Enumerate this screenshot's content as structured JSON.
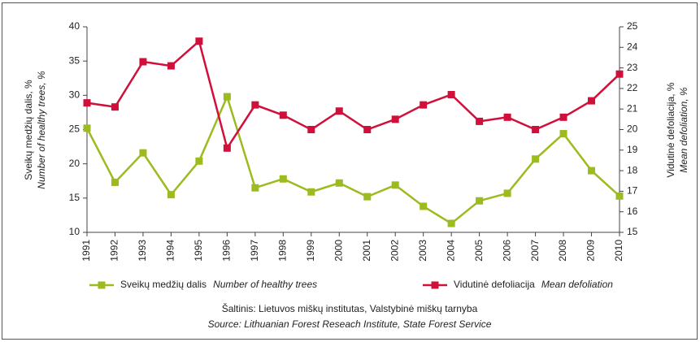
{
  "chart_data": {
    "type": "line",
    "categories": [
      "1991",
      "1992",
      "1993",
      "1994",
      "1995",
      "1996",
      "1997",
      "1998",
      "1999",
      "2000",
      "2001",
      "2002",
      "2003",
      "2004",
      "2005",
      "2006",
      "2007",
      "2008",
      "2009",
      "2010"
    ],
    "series": [
      {
        "name": "Sveikų medžių dalis",
        "name_en": "Number of healthy trees",
        "color": "#9bbb1e",
        "values": [
          25.2,
          17.3,
          21.6,
          15.5,
          20.4,
          29.8,
          16.5,
          17.8,
          15.9,
          17.2,
          15.2,
          16.9,
          13.8,
          11.3,
          14.6,
          15.7,
          20.7,
          24.4,
          19.0,
          15.3
        ]
      },
      {
        "name": "Vidutinė defoliacija",
        "name_en": "Mean defoliation",
        "color": "#d0103a",
        "axis": "y2",
        "values": [
          21.3,
          21.1,
          23.3,
          23.1,
          24.3,
          19.1,
          21.2,
          20.7,
          20.0,
          20.9,
          20.0,
          20.5,
          21.2,
          21.7,
          20.4,
          20.6,
          20.0,
          20.6,
          21.4,
          22.7
        ]
      }
    ],
    "ylabel": "Sveikų medžių dalis, %",
    "ylabel_en": "Number of healthy trees, %",
    "y2label": "Vidutinė defoliacija, %",
    "y2label_en": "Mean defoliation, %",
    "ylim": [
      10,
      40
    ],
    "yticks": [
      10,
      15,
      20,
      25,
      30,
      35,
      40
    ],
    "y2lim": [
      15,
      25
    ],
    "y2ticks": [
      15,
      16,
      17,
      18,
      19,
      20,
      21,
      22,
      23,
      24,
      25
    ],
    "source": "Šaltinis: Lietuvos miškų institutas, Valstybinė miškų tarnyba",
    "source_en": "Source: Lithuanian Forest Reseach Institute, State Forest Service"
  }
}
